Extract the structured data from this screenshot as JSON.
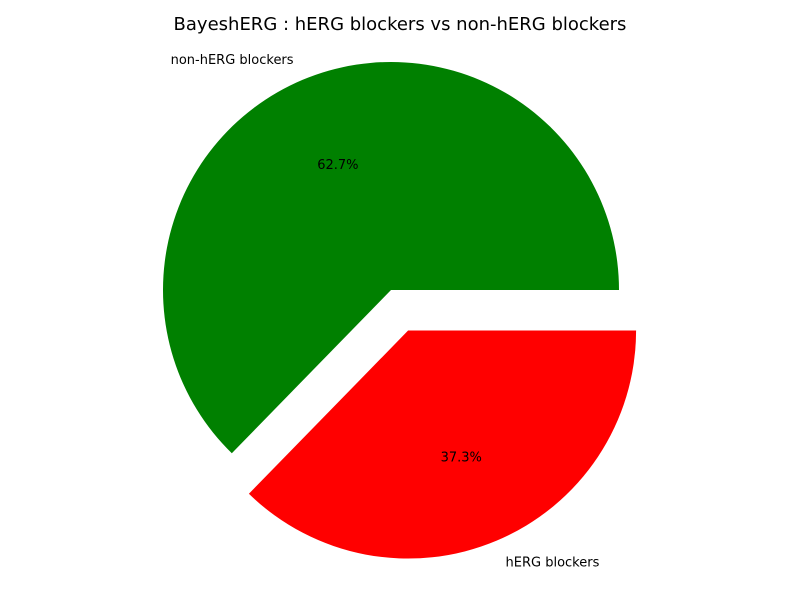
{
  "chart_data": {
    "type": "pie",
    "title": "BayeshERG : hERG blockers vs non-hERG blockers",
    "slices": [
      {
        "label": "non-hERG blockers",
        "value": 62.7,
        "pct_label": "62.7%",
        "color": "#008000",
        "explode": false
      },
      {
        "label": "hERG blockers",
        "value": 37.3,
        "pct_label": "37.3%",
        "color": "#ff0000",
        "explode": true
      }
    ]
  }
}
